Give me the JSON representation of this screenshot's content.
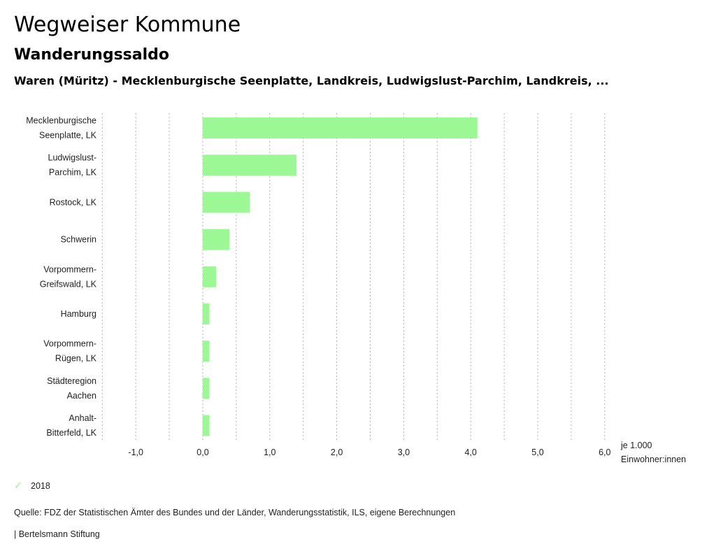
{
  "header": {
    "title": "Wegweiser Kommune",
    "subtitle": "Wanderungssaldo",
    "regions": "Waren (Müritz) - Mecklenburgische Seenplatte, Landkreis, Ludwigslust-Parchim, Landkreis, ..."
  },
  "colors": {
    "bar": "#9cf894",
    "grid": "#b3b3b3",
    "legend_check": "#9cf590"
  },
  "chart_data": {
    "type": "bar",
    "orientation": "horizontal",
    "title": "Wanderungssaldo",
    "categories": [
      [
        "Mecklenburgische",
        "Seenplatte, LK"
      ],
      [
        "Ludwigslust-",
        "Parchim, LK"
      ],
      [
        "Rostock, LK"
      ],
      [
        "Schwerin"
      ],
      [
        "Vorpommern-",
        "Greifswald, LK"
      ],
      [
        "Hamburg"
      ],
      [
        "Vorpommern-",
        "Rügen, LK"
      ],
      [
        "Städteregion",
        "Aachen"
      ],
      [
        "Anhalt-",
        "Bitterfeld, LK"
      ]
    ],
    "series": [
      {
        "name": "2018",
        "values": [
          4.1,
          1.4,
          0.7,
          0.4,
          0.2,
          0.1,
          0.1,
          0.1,
          0.1
        ]
      }
    ],
    "xlim": [
      -1.5,
      6.0
    ],
    "xticks": [
      -1.0,
      0.0,
      1.0,
      2.0,
      3.0,
      4.0,
      5.0,
      6.0
    ],
    "xtick_labels": [
      "-1,0",
      "0,0",
      "1,0",
      "2,0",
      "3,0",
      "4,0",
      "5,0",
      "6,0"
    ],
    "xlabel": [
      "je 1.000",
      "Einwohner:innen"
    ],
    "ylabel": "",
    "grid": "vertical dashed at every 0.5",
    "legend_position": "bottom-left"
  },
  "legend": {
    "items": [
      {
        "label": "2018",
        "icon": "check-icon"
      }
    ]
  },
  "footer": {
    "source": "Quelle: FDZ der Statistischen Ämter des Bundes und der Länder, Wanderungsstatistik, ILS, eigene Berechnungen",
    "credit": "| Bertelsmann Stiftung"
  }
}
